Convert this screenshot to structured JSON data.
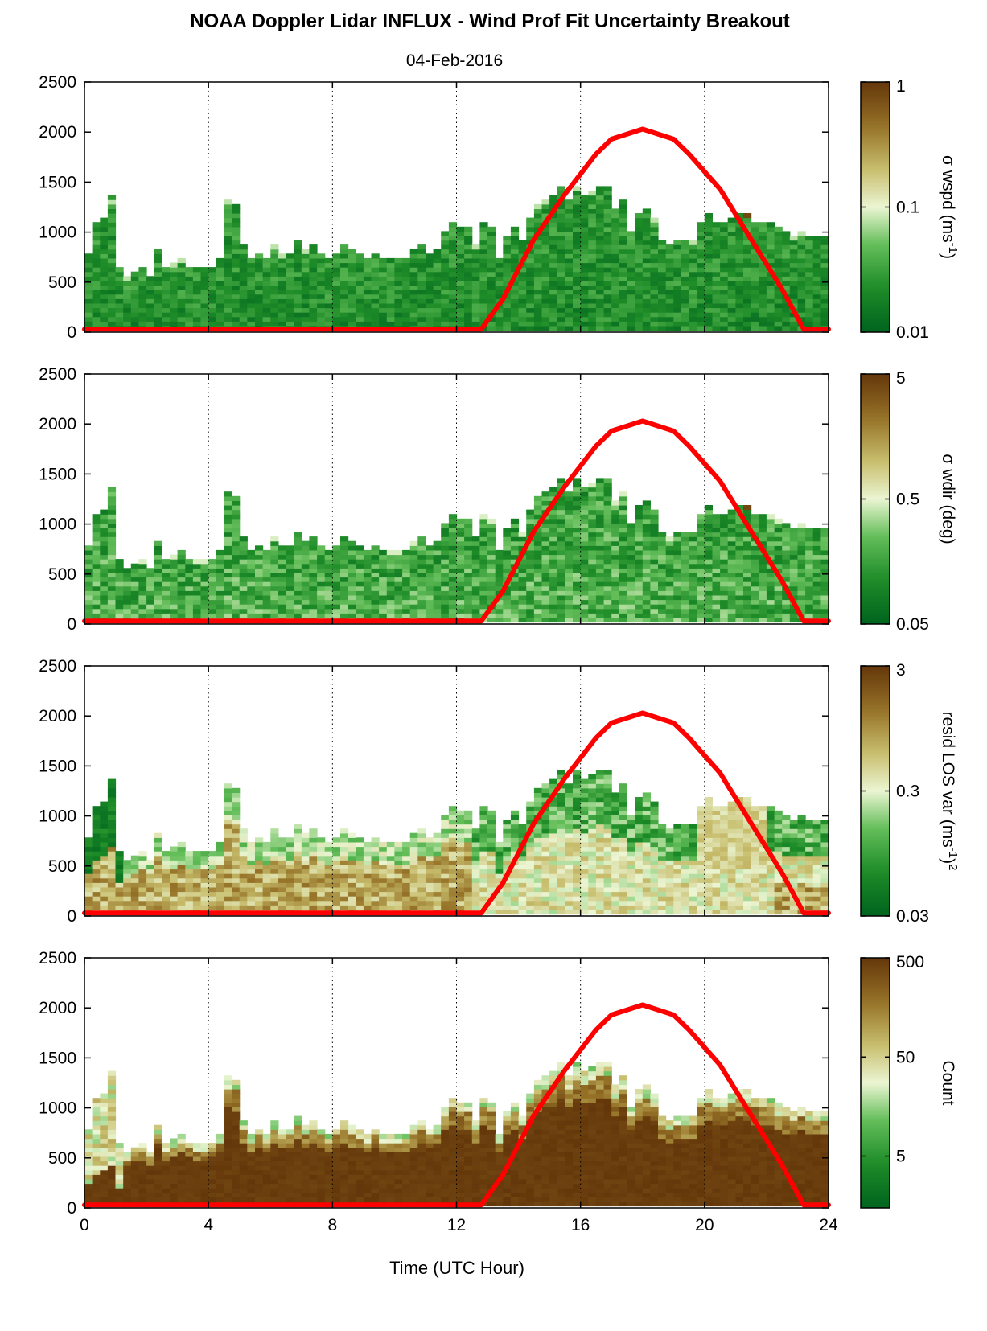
{
  "title": "NOAA Doppler Lidar INFLUX - Wind Prof Fit Uncertainty Breakout",
  "subtitle": "04-Feb-2016",
  "chart_data": [
    {
      "type": "heatmap",
      "panel": "sigma-wspd",
      "x_range": [
        0,
        24
      ],
      "y_range": [
        0,
        2500
      ],
      "x_ticks": [
        "0",
        "4",
        "8",
        "12",
        "16",
        "20",
        "24"
      ],
      "y_ticks": [
        "0",
        "500",
        "1000",
        "1500",
        "2000",
        "2500"
      ],
      "vertical_grid_at": [
        4,
        8,
        12,
        16,
        20
      ],
      "grid": "dotted vertical",
      "colorbar": {
        "label_main": "σ wspd (ms",
        "label_sup": "-1",
        "label_end": ")",
        "scale": "log",
        "ticks": [
          "0.01",
          "0.1",
          "1"
        ],
        "range": [
          0.01,
          1
        ]
      },
      "value_character": "mostly 0.01-0.05 (dark-mid green), sparse higher values near top",
      "series": [
        {
          "type": "line",
          "color": "#ff0000",
          "description_values": "peak 2000 at 18 UTC, zero before 12.8 and after 23.2",
          "x": [
            12.8,
            13.5,
            14.5,
            15.5,
            16.5,
            17.0,
            18.0,
            19.0,
            19.5,
            20.5,
            21.5,
            22.5,
            23.2
          ],
          "y": [
            0,
            300,
            900,
            1350,
            1750,
            1900,
            2000,
            1900,
            1750,
            1400,
            900,
            400,
            0
          ]
        }
      ]
    },
    {
      "type": "heatmap",
      "panel": "sigma-wdir",
      "x_range": [
        0,
        24
      ],
      "y_range": [
        0,
        2500
      ],
      "x_ticks": [
        "0",
        "4",
        "8",
        "12",
        "16",
        "20",
        "24"
      ],
      "y_ticks": [
        "0",
        "500",
        "1000",
        "1500",
        "2000",
        "2500"
      ],
      "vertical_grid_at": [
        4,
        8,
        12,
        16,
        20
      ],
      "grid": "dotted vertical",
      "colorbar": {
        "label_main": "σ wdir (deg)",
        "scale": "log",
        "ticks": [
          "0.05",
          "0.5",
          "5"
        ],
        "range": [
          0.05,
          5
        ]
      },
      "series": [
        {
          "type": "line",
          "color": "#ff0000",
          "x": [
            12.8,
            13.5,
            14.5,
            15.5,
            16.5,
            17.0,
            18.0,
            19.0,
            19.5,
            20.5,
            21.5,
            22.5,
            23.2
          ],
          "y": [
            0,
            300,
            900,
            1350,
            1750,
            1900,
            2000,
            1900,
            1750,
            1400,
            900,
            400,
            0
          ]
        }
      ]
    },
    {
      "type": "heatmap",
      "panel": "resid-los-var",
      "x_range": [
        0,
        24
      ],
      "y_range": [
        0,
        2500
      ],
      "x_ticks": [
        "0",
        "4",
        "8",
        "12",
        "16",
        "20",
        "24"
      ],
      "y_ticks": [
        "0",
        "500",
        "1000",
        "1500",
        "2000",
        "2500"
      ],
      "vertical_grid_at": [
        4,
        8,
        12,
        16,
        20
      ],
      "grid": "dotted vertical",
      "colorbar": {
        "label_main": "resid LOS var (ms",
        "label_sup": "-1",
        "label_end": ")",
        "label_sup2": "2",
        "scale": "log",
        "ticks": [
          "0.03",
          "0.3",
          "3"
        ],
        "range": [
          0.03,
          3
        ]
      },
      "series": [
        {
          "type": "line",
          "color": "#ff0000",
          "x": [
            12.8,
            13.5,
            14.5,
            15.5,
            16.5,
            17.0,
            18.0,
            19.0,
            19.5,
            20.5,
            21.5,
            22.5,
            23.2
          ],
          "y": [
            0,
            300,
            900,
            1350,
            1750,
            1900,
            2000,
            1900,
            1750,
            1400,
            900,
            400,
            0
          ]
        }
      ]
    },
    {
      "type": "heatmap",
      "panel": "count",
      "x_range": [
        0,
        24
      ],
      "y_range": [
        0,
        2500
      ],
      "x_ticks": [
        "0",
        "4",
        "8",
        "12",
        "16",
        "20",
        "24"
      ],
      "y_ticks": [
        "0",
        "500",
        "1000",
        "1500",
        "2000",
        "2500"
      ],
      "vertical_grid_at": [
        4,
        8,
        12,
        16,
        20
      ],
      "grid": "dotted vertical",
      "xlabel": "Time (UTC Hour)",
      "colorbar": {
        "label_main": "Count",
        "scale": "log",
        "ticks": [
          "5",
          "50",
          "500"
        ],
        "range": [
          1.5,
          500
        ]
      },
      "series": [
        {
          "type": "line",
          "color": "#ff0000",
          "x": [
            12.8,
            13.5,
            14.5,
            15.5,
            16.5,
            17.0,
            18.0,
            19.0,
            19.5,
            20.5,
            21.5,
            22.5,
            23.2
          ],
          "y": [
            0,
            300,
            900,
            1350,
            1750,
            1900,
            2000,
            1900,
            1750,
            1400,
            900,
            400,
            0
          ]
        }
      ]
    }
  ],
  "profile_tops": {
    "x": [
      0,
      0.25,
      0.5,
      0.75,
      1.0,
      1.25,
      1.5,
      1.75,
      2.0,
      2.25,
      2.5,
      2.75,
      3.0,
      3.25,
      3.5,
      3.75,
      4.0,
      4.25,
      4.5,
      4.75,
      5.0,
      5.25,
      5.5,
      5.75,
      6.0,
      6.25,
      6.5,
      6.75,
      7.0,
      7.25,
      7.5,
      7.75,
      8.0,
      8.25,
      8.5,
      8.75,
      9.0,
      9.25,
      9.5,
      9.75,
      10.0,
      10.25,
      10.5,
      10.75,
      11.0,
      11.25,
      11.5,
      11.75,
      12.0,
      12.25,
      12.5,
      12.75,
      13.0,
      13.25,
      13.5,
      13.75,
      14.0,
      14.25,
      14.5,
      14.75,
      15.0,
      15.25,
      15.5,
      15.75,
      16.0,
      16.25,
      16.5,
      16.75,
      17.0,
      17.25,
      17.5,
      17.75,
      18.0,
      18.25,
      18.5,
      18.75,
      19.0,
      19.25,
      19.5,
      19.75,
      20.0,
      20.25,
      20.5,
      20.75,
      21.0,
      21.25,
      21.5,
      21.75,
      22.0,
      22.25,
      22.5,
      22.75,
      23.0,
      23.25,
      23.5,
      23.75
    ],
    "y": [
      780,
      1060,
      1140,
      1340,
      650,
      520,
      600,
      620,
      560,
      820,
      620,
      660,
      720,
      640,
      620,
      610,
      640,
      700,
      1320,
      1280,
      860,
      720,
      780,
      720,
      860,
      760,
      780,
      920,
      800,
      840,
      780,
      720,
      780,
      860,
      800,
      760,
      720,
      780,
      700,
      700,
      720,
      720,
      800,
      860,
      780,
      820,
      1000,
      1100,
      1040,
      1040,
      860,
      1080,
      1040,
      700,
      960,
      1040,
      900,
      1140,
      1240,
      1300,
      1340,
      1440,
      1320,
      1420,
      1360,
      1400,
      1460,
      1440,
      1220,
      1300,
      1000,
      1160,
      1200,
      1120,
      900,
      860,
      900,
      880,
      880,
      1100,
      1160,
      1080,
      1100,
      1140,
      1180,
      1160,
      1100,
      1100,
      1080,
      1020,
      980,
      960,
      1000,
      960,
      940,
      940
    ]
  }
}
